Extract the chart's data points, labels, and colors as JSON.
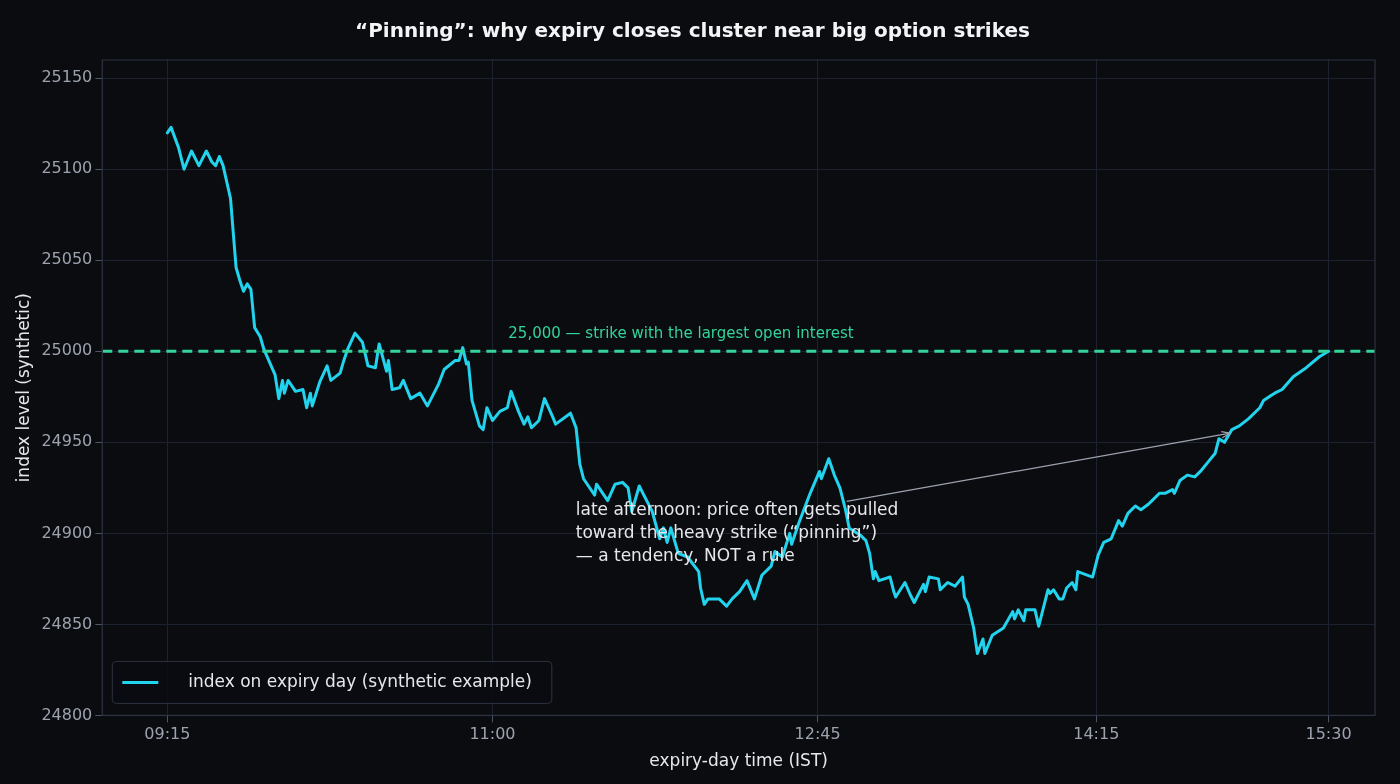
{
  "chart_data": {
    "type": "line",
    "title": "“Pinning”: why expiry closes cluster near big option strikes",
    "xlabel": "expiry-day time (IST)",
    "ylabel": "index level (synthetic)",
    "xlim": [
      8.9,
      15.75
    ],
    "xticks": [
      {
        "value": 9.25,
        "label": "09:15"
      },
      {
        "value": 11,
        "label": "11:00"
      },
      {
        "value": 12.75,
        "label": "12:45"
      },
      {
        "value": 14.25,
        "label": "14:15"
      },
      {
        "value": 15.5,
        "label": "15:30"
      }
    ],
    "ylim": [
      24800,
      25160
    ],
    "yticks": [
      24800,
      24850,
      24900,
      24950,
      25000,
      25050,
      25100,
      25150
    ],
    "grid": true,
    "legend": "bottom left",
    "line_style": "solid",
    "marker": "none",
    "series": [
      {
        "name": "index on expiry day (synthetic example)",
        "color": "#22d3ee",
        "x": [
          9.25,
          9.27,
          9.31,
          9.34,
          9.38,
          9.42,
          9.46,
          9.49,
          9.51,
          9.53,
          9.55,
          9.59,
          9.62,
          9.64,
          9.66,
          9.68,
          9.7,
          9.72,
          9.75,
          9.77,
          9.83,
          9.85,
          9.87,
          9.88,
          9.9,
          9.94,
          9.98,
          10.0,
          10.02,
          10.03,
          10.07,
          10.11,
          10.13,
          10.18,
          10.2,
          10.22,
          10.26,
          10.3,
          10.33,
          10.37,
          10.39,
          10.43,
          10.44,
          10.46,
          10.5,
          10.52,
          10.56,
          10.61,
          10.65,
          10.71,
          10.74,
          10.8,
          10.82,
          10.84,
          10.86,
          10.87,
          10.89,
          10.93,
          10.95,
          10.97,
          11.0,
          11.04,
          11.08,
          11.1,
          11.14,
          11.17,
          11.19,
          11.21,
          11.25,
          11.28,
          11.32,
          11.34,
          11.42,
          11.45,
          11.47,
          11.49,
          11.55,
          11.56,
          11.6,
          11.62,
          11.66,
          11.7,
          11.73,
          11.75,
          11.79,
          11.83,
          11.86,
          11.9,
          11.92,
          11.94,
          11.96,
          12.0,
          12.05,
          12.11,
          12.12,
          12.14,
          12.16,
          12.22,
          12.26,
          12.29,
          12.33,
          12.37,
          12.41,
          12.45,
          12.5,
          12.52,
          12.56,
          12.6,
          12.61,
          12.65,
          12.71,
          12.76,
          12.77,
          12.81,
          12.84,
          12.87,
          12.9,
          12.92,
          12.98,
          13.01,
          13.03,
          13.05,
          13.06,
          13.08,
          13.14,
          13.16,
          13.17,
          13.22,
          13.25,
          13.27,
          13.32,
          13.33,
          13.35,
          13.4,
          13.41,
          13.45,
          13.49,
          13.53,
          13.54,
          13.56,
          13.59,
          13.61,
          13.64,
          13.65,
          13.69,
          13.75,
          13.8,
          13.81,
          13.83,
          13.86,
          13.87,
          13.92,
          13.94,
          13.99,
          14.0,
          14.02,
          14.05,
          14.07,
          14.09,
          14.12,
          14.14,
          14.15,
          14.23,
          14.26,
          14.29,
          14.33,
          14.37,
          14.39,
          14.42,
          14.46,
          14.49,
          14.53,
          14.55,
          14.59,
          14.62,
          14.66,
          14.67,
          14.7,
          14.74,
          14.78,
          14.81,
          14.85,
          14.89,
          14.91,
          14.94,
          14.98,
          15.02,
          15.07,
          15.13,
          15.15,
          15.21,
          15.25,
          15.31,
          15.38,
          15.45,
          15.5
        ],
        "values": [
          25120,
          25123,
          25112,
          25100,
          25110,
          25102,
          25110,
          25104,
          25102,
          25107,
          25102,
          25084,
          25046,
          25039,
          25033,
          25037,
          25034,
          25013,
          25008,
          25001,
          24987,
          24974,
          24984,
          24977,
          24984,
          24978,
          24979,
          24969,
          24977,
          24970,
          24983,
          24992,
          24984,
          24988,
          24995,
          25001,
          25010,
          25005,
          24992,
          24991,
          25004,
          24989,
          24995,
          24979,
          24980,
          24984,
          24974,
          24977,
          24970,
          24982,
          24990,
          24995,
          24995,
          25002,
          24993,
          24994,
          24973,
          24959,
          24957,
          24969,
          24962,
          24967,
          24969,
          24978,
          24967,
          24960,
          24964,
          24958,
          24962,
          24974,
          24965,
          24960,
          24966,
          24958,
          24938,
          24930,
          24921,
          24927,
          24921,
          24918,
          24927,
          24928,
          24925,
          24912,
          24926,
          24918,
          24912,
          24897,
          24903,
          24895,
          24903,
          24889,
          24887,
          24879,
          24870,
          24861,
          24864,
          24864,
          24860,
          24864,
          24868,
          24874,
          24864,
          24877,
          24882,
          24890,
          24887,
          24900,
          24894,
          24906,
          24922,
          24934,
          24930,
          24941,
          24932,
          24925,
          24913,
          24903,
          24899,
          24896,
          24889,
          24875,
          24879,
          24874,
          24876,
          24868,
          24865,
          24873,
          24866,
          24862,
          24872,
          24868,
          24876,
          24875,
          24869,
          24873,
          24871,
          24876,
          24865,
          24861,
          24848,
          24834,
          24842,
          24834,
          24844,
          24848,
          24857,
          24853,
          24858,
          24852,
          24858,
          24858,
          24849,
          24869,
          24867,
          24869,
          24864,
          24864,
          24870,
          24873,
          24869,
          24879,
          24876,
          24888,
          24895,
          24897,
          24907,
          24904,
          24911,
          24915,
          24913,
          24916,
          24918,
          24922,
          24922,
          24924,
          24922,
          24929,
          24932,
          24931,
          24934,
          24939,
          24944,
          24952,
          24950,
          24957,
          24959,
          24963,
          24969,
          24973,
          24977,
          24979,
          24986,
          24991,
          24997,
          25000
        ]
      }
    ],
    "ref_lines": [
      {
        "axis": "y",
        "value": 25000,
        "label": "25,000 — strike with the largest open interest",
        "color": "#34d399",
        "line_style": "dashed"
      }
    ],
    "annotations": [
      {
        "text": "late afternoon: price often gets pulled\ntoward the heavy strike (“pinning”)\n— a tendency, NOT a rule",
        "x": 14.97,
        "y": 24955
      }
    ]
  }
}
